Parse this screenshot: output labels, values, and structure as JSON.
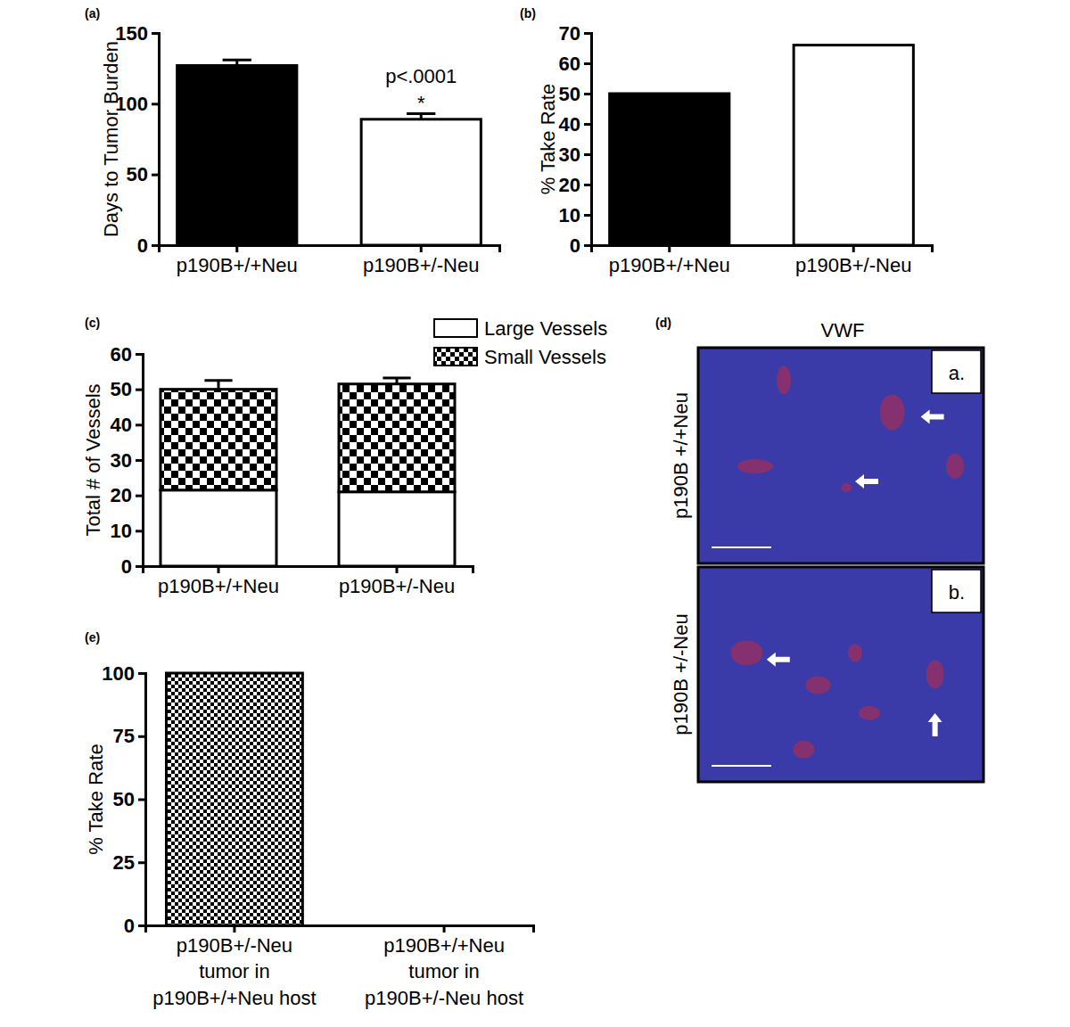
{
  "chart_data": [
    {
      "type": "bar",
      "title": "(a)",
      "y_label": "Days to Tumor Burden",
      "categories": [
        "p190B+/+Neu",
        "p190B+/-Neu"
      ],
      "values": [
        127,
        89
      ],
      "errors": [
        4,
        4
      ],
      "colors": [
        "#000000",
        "#ffffff"
      ],
      "ylim": [
        0,
        150
      ],
      "yticks": [
        0,
        50,
        100,
        150
      ],
      "annotations": [
        "p<.0001",
        "*"
      ]
    },
    {
      "type": "bar",
      "title": "(b)",
      "y_label": "% Take Rate",
      "categories": [
        "p190B+/+Neu",
        "p190B+/-Neu"
      ],
      "values": [
        50,
        66
      ],
      "colors": [
        "#000000",
        "#ffffff"
      ],
      "ylim": [
        0,
        70
      ],
      "yticks": [
        0,
        10,
        20,
        30,
        40,
        50,
        60,
        70
      ]
    },
    {
      "type": "bar",
      "title": "(c)",
      "y_label": "Total # of Vessels",
      "stacked": true,
      "legend": "top-right",
      "categories": [
        "p190B+/+Neu",
        "p190B+/-Neu"
      ],
      "series": [
        {
          "name": "Large Vessels",
          "color": "#ffffff",
          "values": [
            21.5,
            21
          ]
        },
        {
          "name": "Small Vessels",
          "color": "#000000",
          "values": [
            28.5,
            30.5
          ],
          "errors": [
            2.5,
            1.7
          ]
        }
      ],
      "ylim": [
        0,
        60
      ],
      "yticks": [
        0,
        10,
        20,
        30,
        40,
        50,
        60
      ]
    },
    {
      "type": "bar",
      "title": "(e)",
      "y_label": "% Take Rate",
      "categories": [
        "p190B+/-Neu\ntumor in\np190B+/+Neu host",
        "p190B+/+Neu\ntumor in\np190B+/-Neu host"
      ],
      "values": [
        100,
        0
      ],
      "color": "#000000",
      "ylim": [
        0,
        100
      ],
      "yticks": [
        0,
        25,
        50,
        75,
        100
      ]
    }
  ],
  "micrograph": {
    "title": "(d)",
    "stain": "VWF",
    "panels": [
      {
        "label": "a.",
        "row_label": "p190B +/+Neu"
      },
      {
        "label": "b.",
        "row_label": "p190B +/-Neu"
      }
    ]
  }
}
